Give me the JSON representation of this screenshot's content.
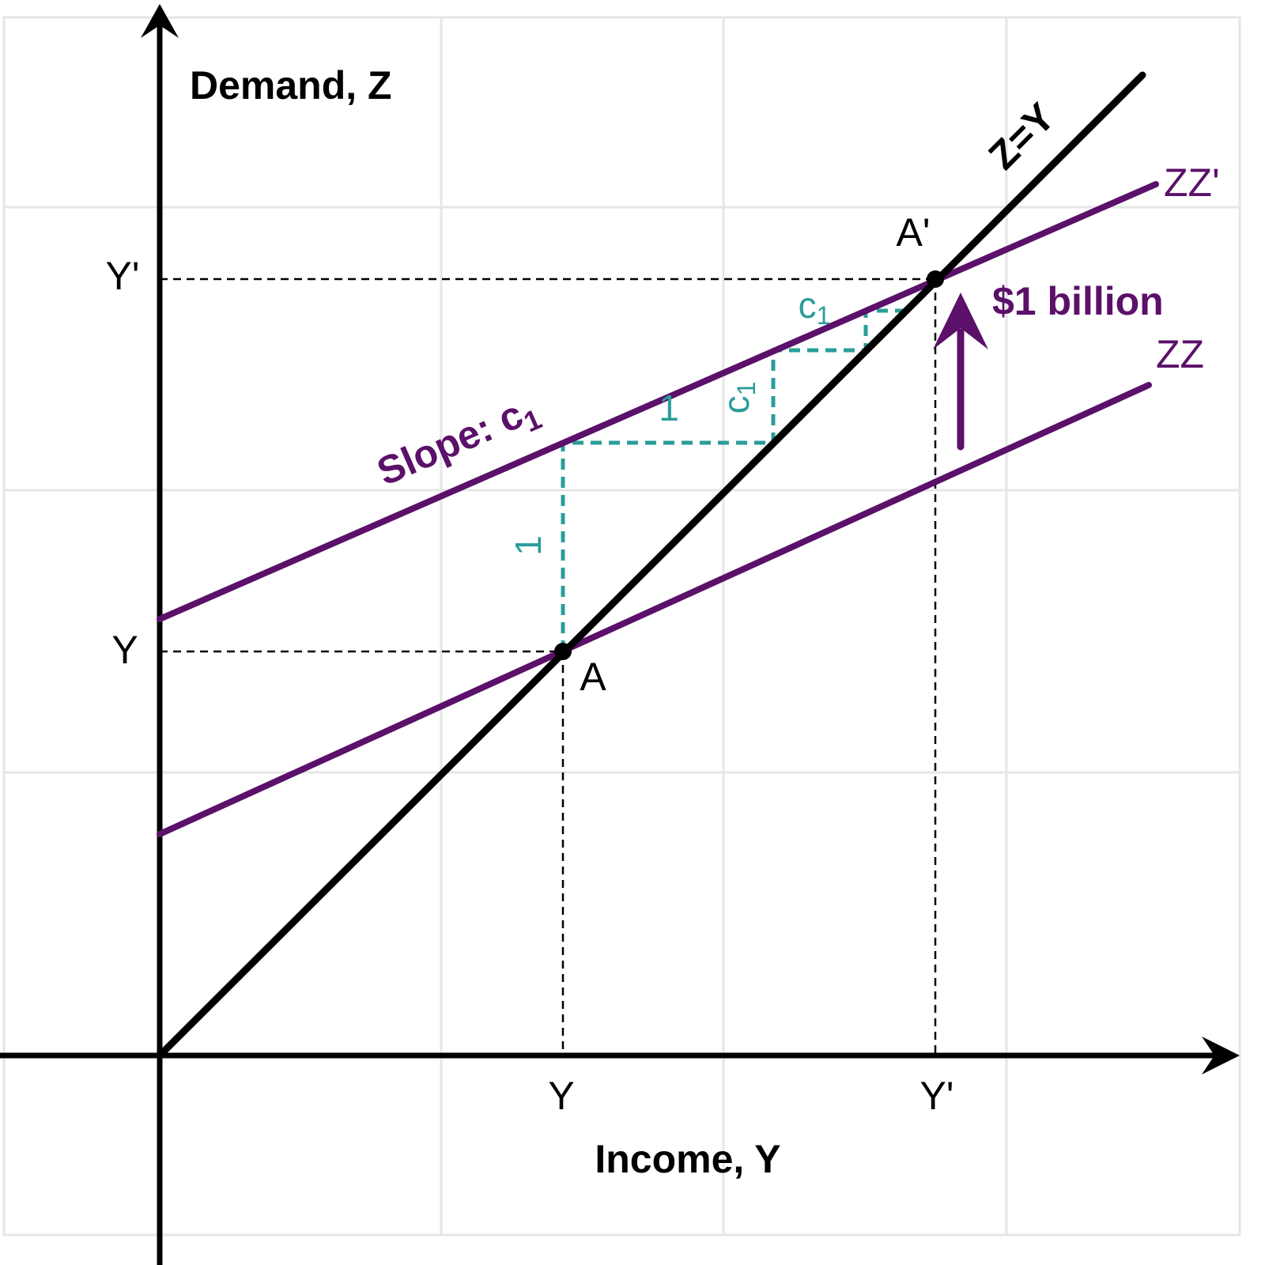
{
  "axes": {
    "y_title": "Demand, Z",
    "x_title": "Income, Y",
    "y_labels": [
      "Y'",
      "Y"
    ],
    "x_labels": [
      "Y",
      "Y'"
    ]
  },
  "lines": {
    "identity": "Z=Y",
    "zz_new": "ZZ'",
    "zz": "ZZ"
  },
  "points": {
    "a_new": "A'",
    "a": "A"
  },
  "shift": "$1 billion",
  "slope": {
    "text": "Slope: c",
    "subscript": "1"
  },
  "triangles": {
    "big_rise": "1",
    "big_run": "1",
    "big_rise_c": {
      "text": "c",
      "subscript": "1"
    },
    "small_c": {
      "text": "c",
      "subscript": "1"
    }
  }
}
